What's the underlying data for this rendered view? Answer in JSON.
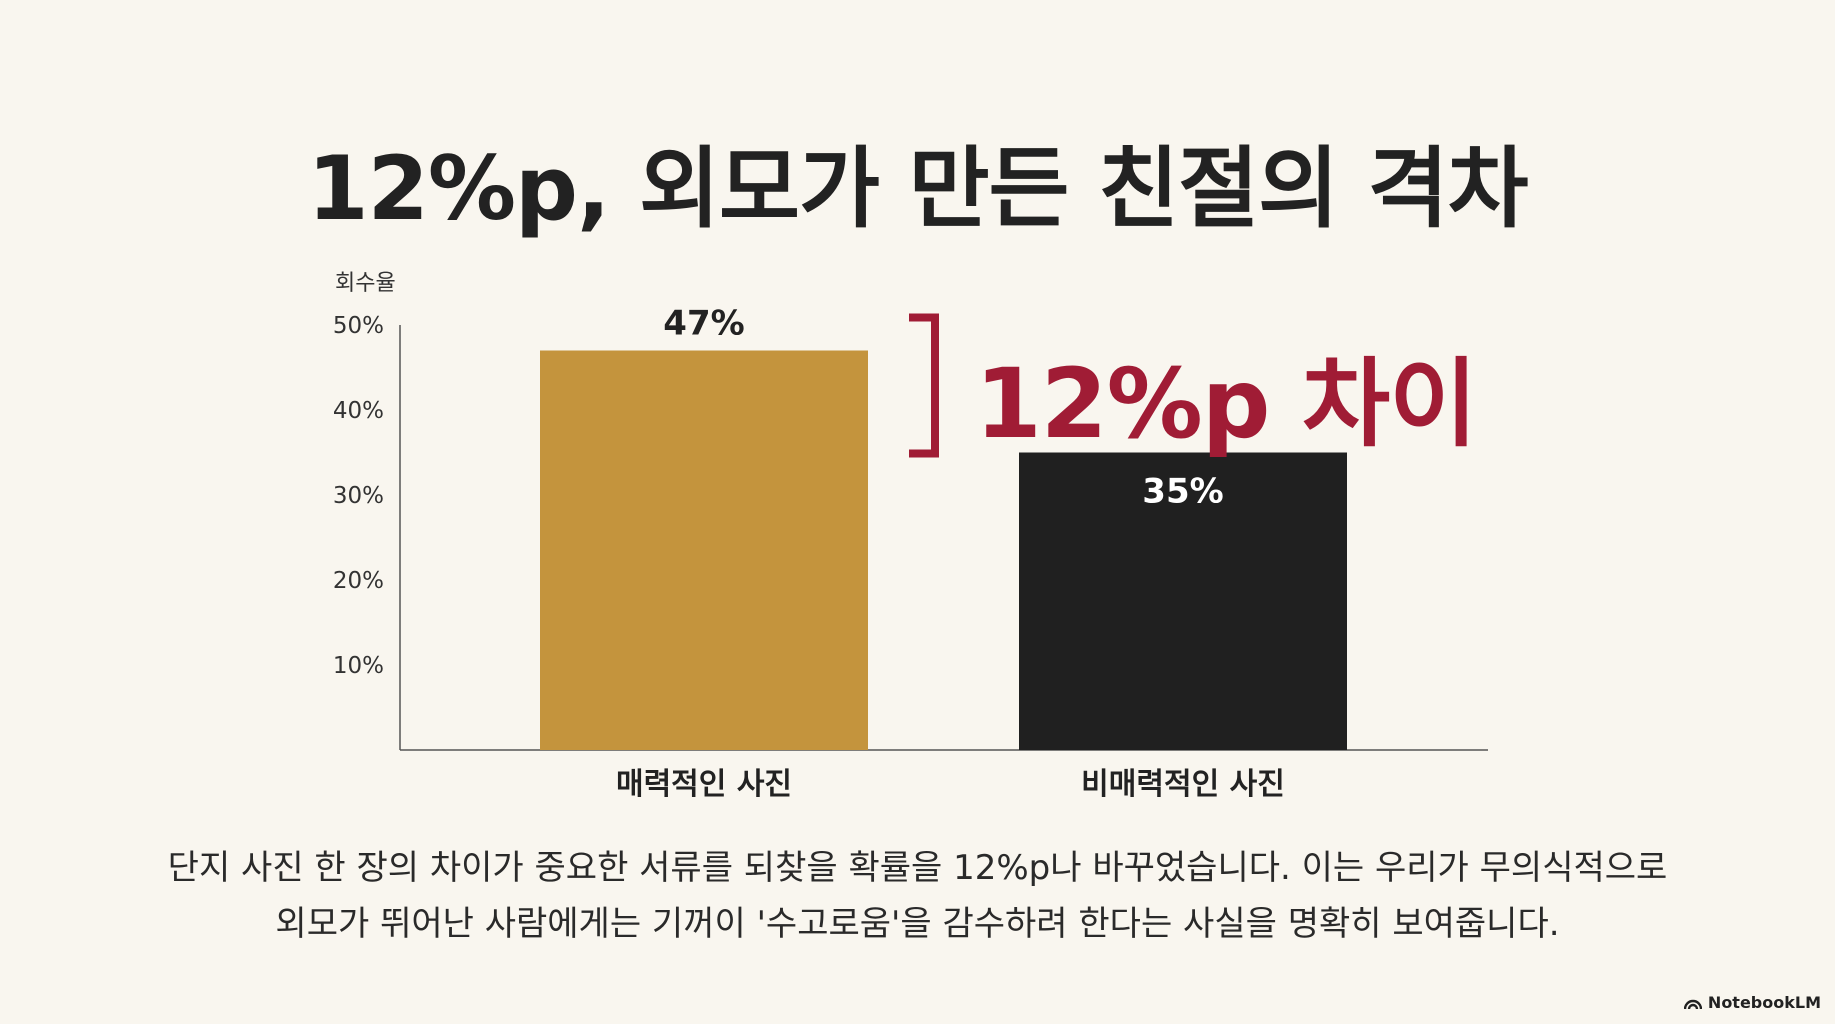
{
  "title": "12%p, 외모가 만든 친절의 격차",
  "chart_data": {
    "type": "bar",
    "ylabel": "회수율",
    "yticks": [
      "10%",
      "20%",
      "30%",
      "40%",
      "50%"
    ],
    "ylim": [
      0,
      50
    ],
    "categories": [
      "매력적인 사진",
      "비매력적인 사진"
    ],
    "values": [
      47,
      35
    ],
    "value_labels": [
      "47%",
      "35%"
    ],
    "bar_colors": [
      "#c4943d",
      "#202020"
    ],
    "annotation": "12%p 차이",
    "annotation_color": "#a01c35"
  },
  "caption": {
    "line1": "단지 사진 한 장의 차이가 중요한 서류를 되찾을 확률을 12%p나 바꾸었습니다. 이는 우리가 무의식적으로",
    "line2": "외모가 뛰어난 사람에게는 기꺼이 '수고로움'을 감수하려 한다는 사실을 명확히 보여줍니다."
  },
  "brand": {
    "name": "NotebookLM"
  }
}
